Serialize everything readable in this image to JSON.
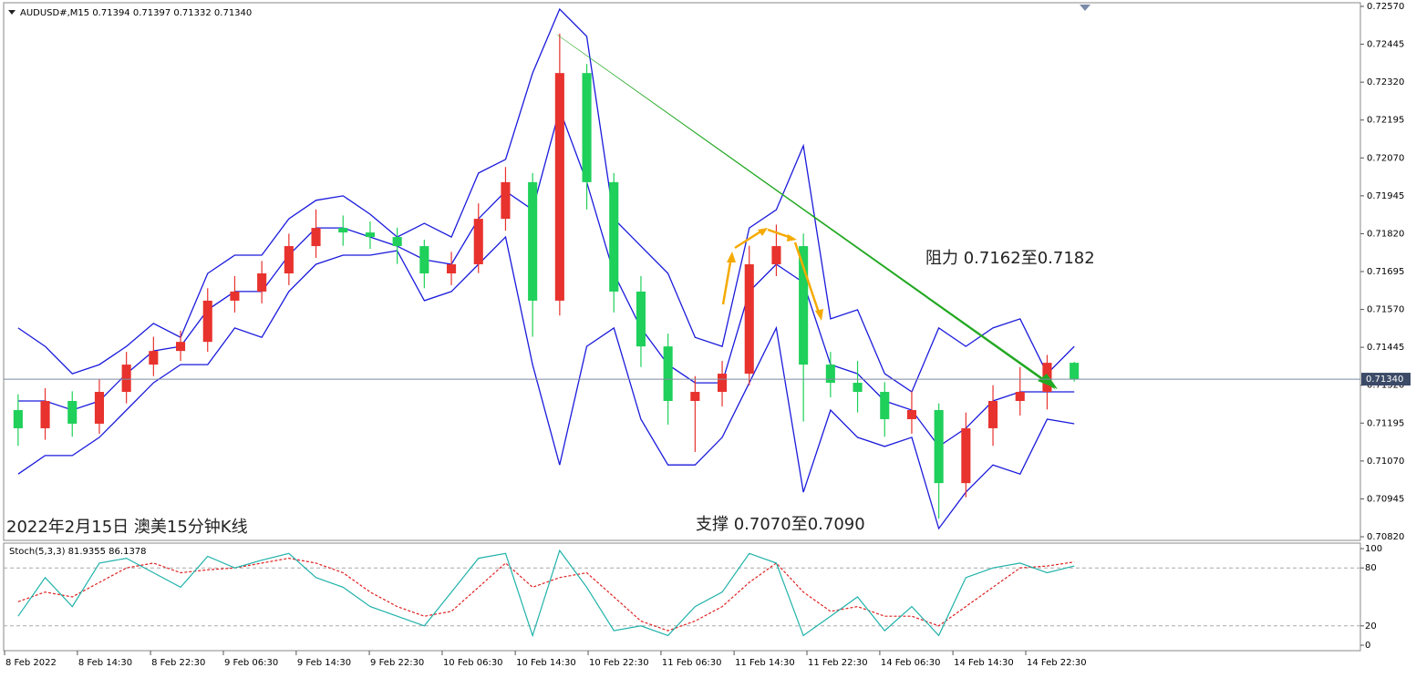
{
  "chart_data": {
    "type": "candlestick",
    "title": "AUDUSD#,M15  0.71394 0.71397 0.71332 0.71340",
    "x": [
      0.5,
      1.5,
      2.5,
      3.5,
      4.5,
      5.5,
      6.5,
      7.5,
      8.5,
      9.5,
      10.5,
      11.5,
      12.5,
      13.5,
      14.5,
      15.5,
      16.5,
      17.5,
      18.5,
      19.5,
      20.5,
      21.5,
      22.5,
      23.5,
      24.5,
      25.5,
      26.5,
      27.5,
      28.5,
      29.5,
      30.5,
      31.5,
      32.5,
      33.5,
      34.5,
      35.5,
      36.5,
      37.5,
      38.5,
      39.5
    ],
    "xlim": [
      0,
      50
    ],
    "xticks": [
      {
        "value": 0,
        "label": "8 Feb 2022"
      },
      {
        "value": 2.69,
        "label": "8 Feb 14:30"
      },
      {
        "value": 5.39,
        "label": "8 Feb 22:30"
      },
      {
        "value": 8.08,
        "label": "9 Feb 06:30"
      },
      {
        "value": 10.77,
        "label": "9 Feb 14:30"
      },
      {
        "value": 13.47,
        "label": "9 Feb 22:30"
      },
      {
        "value": 16.16,
        "label": "10 Feb 06:30"
      },
      {
        "value": 18.86,
        "label": "10 Feb 14:30"
      },
      {
        "value": 21.55,
        "label": "10 Feb 22:30"
      },
      {
        "value": 24.24,
        "label": "11 Feb 06:30"
      },
      {
        "value": 26.94,
        "label": "11 Feb 14:30"
      },
      {
        "value": 29.63,
        "label": "11 Feb 22:30"
      },
      {
        "value": 32.32,
        "label": "14 Feb 06:30"
      },
      {
        "value": 35.02,
        "label": "14 Feb 14:30"
      },
      {
        "value": 37.71,
        "label": "14 Feb 22:30"
      }
    ],
    "ylim": [
      0.7082,
      0.7257
    ],
    "yticks": [
      {
        "value": 0.7257,
        "label": "0.72570"
      },
      {
        "value": 0.72445,
        "label": "0.72445"
      },
      {
        "value": 0.7232,
        "label": "0.72320"
      },
      {
        "value": 0.72195,
        "label": "0.72195"
      },
      {
        "value": 0.7207,
        "label": "0.72070"
      },
      {
        "value": 0.71945,
        "label": "0.71945"
      },
      {
        "value": 0.7182,
        "label": "0.71820"
      },
      {
        "value": 0.71695,
        "label": "0.71695"
      },
      {
        "value": 0.7157,
        "label": "0.71570"
      },
      {
        "value": 0.71445,
        "label": "0.71445"
      },
      {
        "value": 0.7132,
        "label": "0.71320"
      },
      {
        "value": 0.71195,
        "label": "0.71195"
      },
      {
        "value": 0.7107,
        "label": "0.71070"
      },
      {
        "value": 0.70945,
        "label": "0.70945"
      },
      {
        "value": 0.7082,
        "label": "0.70820"
      }
    ],
    "open": [
      0.71238,
      0.71178,
      0.71268,
      0.71193,
      0.71298,
      0.71388,
      0.71433,
      0.71463,
      0.71599,
      0.71629,
      0.71689,
      0.71779,
      0.71839,
      0.71824,
      0.71809,
      0.71779,
      0.71689,
      0.71719,
      0.71869,
      0.7199,
      0.71599,
      0.7235,
      0.7199,
      0.71629,
      0.71448,
      0.71268,
      0.71298,
      0.71358,
      0.71719,
      0.71779,
      0.71388,
      0.71328,
      0.71298,
      0.71208,
      0.71238,
      0.70997,
      0.71178,
      0.71268,
      0.71298,
      0.71394
    ],
    "high": [
      0.7129,
      0.7131,
      0.713,
      0.7134,
      0.7143,
      0.7148,
      0.715,
      0.7164,
      0.7168,
      0.7173,
      0.7182,
      0.719,
      0.7188,
      0.7186,
      0.7184,
      0.718,
      0.7176,
      0.7192,
      0.7204,
      0.7202,
      0.7248,
      0.7238,
      0.7202,
      0.7168,
      0.7149,
      0.7135,
      0.714,
      0.7178,
      0.7185,
      0.7182,
      0.7143,
      0.714,
      0.7133,
      0.713,
      0.7126,
      0.7123,
      0.7132,
      0.7138,
      0.7142,
      0.71397
    ],
    "low": [
      0.7112,
      0.7114,
      0.7115,
      0.7116,
      0.7126,
      0.7135,
      0.714,
      0.7143,
      0.7156,
      0.7159,
      0.7165,
      0.7174,
      0.7178,
      0.7177,
      0.7172,
      0.7164,
      0.7165,
      0.7169,
      0.7183,
      0.7148,
      0.7155,
      0.719,
      0.7156,
      0.7138,
      0.7119,
      0.711,
      0.7125,
      0.7132,
      0.7168,
      0.712,
      0.7128,
      0.7123,
      0.7115,
      0.7116,
      0.7088,
      0.7095,
      0.7112,
      0.7122,
      0.7124,
      0.71332
    ],
    "close": [
      0.71178,
      0.71268,
      0.71193,
      0.71298,
      0.71388,
      0.71433,
      0.71463,
      0.71599,
      0.71629,
      0.71689,
      0.71779,
      0.71839,
      0.71824,
      0.71809,
      0.71779,
      0.71689,
      0.71719,
      0.71869,
      0.7199,
      0.71599,
      0.7235,
      0.7199,
      0.71629,
      0.71448,
      0.71268,
      0.71298,
      0.71358,
      0.71719,
      0.71779,
      0.71388,
      0.71328,
      0.71298,
      0.71208,
      0.71238,
      0.70997,
      0.71178,
      0.71268,
      0.71298,
      0.71394,
      0.7134
    ],
    "up_color": "#e8322d",
    "down_color": "#1fd05a",
    "bands": {
      "color": "#1a1adc",
      "upper": [
        0.71509,
        0.71448,
        0.71358,
        0.71388,
        0.71448,
        0.71524,
        0.71478,
        0.71689,
        0.71749,
        0.71749,
        0.71869,
        0.7193,
        0.71945,
        0.71884,
        0.71809,
        0.71854,
        0.71809,
        0.7202,
        0.72065,
        0.7235,
        0.72561,
        0.72471,
        0.71869,
        0.71779,
        0.71689,
        0.71478,
        0.71448,
        0.71839,
        0.71899,
        0.7211,
        0.71539,
        0.71569,
        0.71358,
        0.71298,
        0.71509,
        0.71448,
        0.71509,
        0.71539,
        0.71358,
        0.71448
      ],
      "middle": [
        0.71268,
        0.71268,
        0.71238,
        0.71268,
        0.71358,
        0.71433,
        0.71448,
        0.71569,
        0.71629,
        0.71629,
        0.71749,
        0.71839,
        0.71839,
        0.71809,
        0.71779,
        0.71734,
        0.71719,
        0.71869,
        0.7196,
        0.71899,
        0.7223,
        0.7199,
        0.71689,
        0.71509,
        0.71388,
        0.71328,
        0.71328,
        0.71629,
        0.71719,
        0.71659,
        0.71388,
        0.71358,
        0.71268,
        0.71238,
        0.71118,
        0.71178,
        0.71268,
        0.71298,
        0.71298,
        0.71298
      ],
      "lower": [
        0.71027,
        0.71088,
        0.71088,
        0.71148,
        0.71238,
        0.71328,
        0.71388,
        0.71388,
        0.71509,
        0.71478,
        0.71629,
        0.71719,
        0.71749,
        0.71749,
        0.71764,
        0.71599,
        0.71629,
        0.71719,
        0.71809,
        0.71388,
        0.71057,
        0.71448,
        0.71509,
        0.71208,
        0.71057,
        0.71057,
        0.71148,
        0.71328,
        0.71509,
        0.70967,
        0.71238,
        0.71148,
        0.71118,
        0.71148,
        0.70847,
        0.70967,
        0.71057,
        0.71027,
        0.71208,
        0.71193
      ]
    },
    "last_price": {
      "value": 0.7134,
      "label": "0.71340"
    },
    "annotations": [
      "阻力 0.7162至0.7182",
      "支撑 0.7070至0.7090",
      "2022年2月15日 澳美15分钟K线"
    ],
    "stoch": {
      "title": "Stoch(5,3,3) 81.9355 86.1378",
      "ylim": [
        0,
        100
      ],
      "yticks": [
        0,
        20,
        80,
        100
      ],
      "levels": [
        20,
        80
      ],
      "k": {
        "color": "#20b2aa",
        "values": [
          30,
          70,
          40,
          85,
          90,
          75,
          60,
          92,
          80,
          88,
          95,
          70,
          60,
          40,
          30,
          20,
          55,
          90,
          95,
          10,
          98,
          60,
          15,
          20,
          10,
          40,
          55,
          95,
          85,
          10,
          30,
          50,
          15,
          40,
          10,
          70,
          80,
          85,
          75,
          81.9355
        ]
      },
      "d": {
        "color": "#e02020",
        "values": [
          45,
          55,
          50,
          65,
          80,
          85,
          75,
          78,
          80,
          85,
          90,
          85,
          75,
          55,
          40,
          30,
          35,
          60,
          85,
          60,
          70,
          75,
          50,
          25,
          15,
          25,
          40,
          65,
          85,
          55,
          35,
          40,
          30,
          30,
          20,
          40,
          60,
          80,
          82,
          86.1378
        ]
      }
    }
  }
}
